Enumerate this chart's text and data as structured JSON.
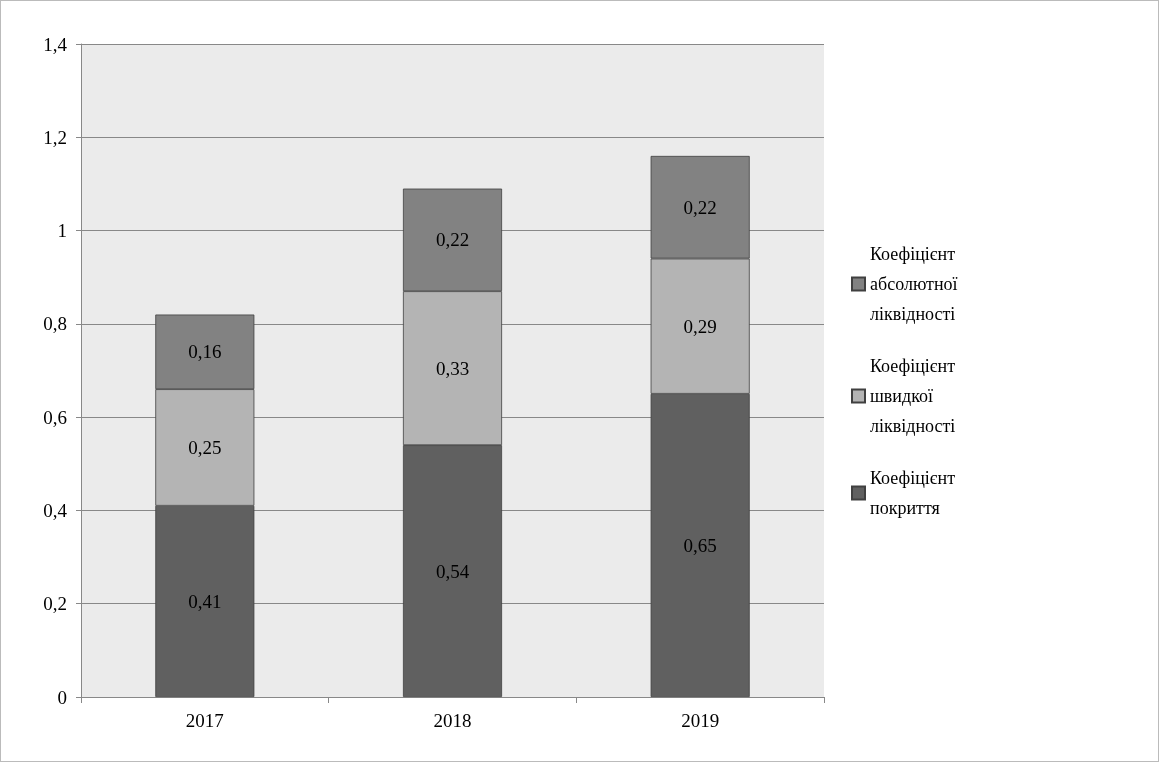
{
  "chart_data": {
    "type": "bar",
    "stacked": true,
    "categories": [
      "2017",
      "2018",
      "2019"
    ],
    "series": [
      {
        "name": "Коефіцієнт покриття",
        "color": "#606060",
        "values": [
          0.41,
          0.54,
          0.65
        ],
        "value_labels": [
          "0,41",
          "0,54",
          "0,65"
        ]
      },
      {
        "name": "Коефіцієнт швидкої ліквідності",
        "color": "#b4b4b4",
        "values": [
          0.25,
          0.33,
          0.29
        ],
        "value_labels": [
          "0,25",
          "0,33",
          "0,29"
        ]
      },
      {
        "name": "Коефіцієнт абсолютної ліквідності",
        "color": "#828282",
        "values": [
          0.16,
          0.22,
          0.22
        ],
        "value_labels": [
          "0,16",
          "0,22",
          "0,22"
        ]
      }
    ],
    "ylim": [
      0,
      1.4
    ],
    "yticks": [
      0,
      {
        "value": 0.2,
        "label": "0,2"
      },
      {
        "value": 0.4,
        "label": "0,4"
      },
      {
        "value": 0.6,
        "label": "0,6"
      },
      {
        "value": 0.8,
        "label": "0,8"
      },
      1,
      {
        "value": 1.2,
        "label": "1,2"
      },
      {
        "value": 1.4,
        "label": "1,4"
      }
    ],
    "grid": "y",
    "legend": "right"
  }
}
